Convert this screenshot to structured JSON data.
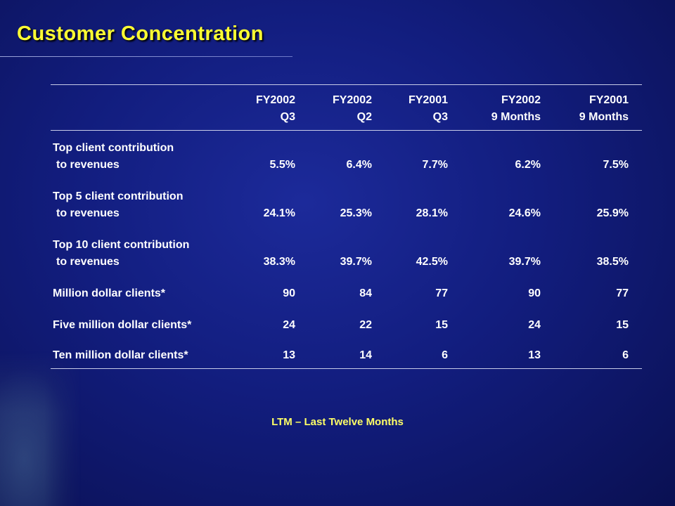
{
  "title": "Customer Concentration",
  "columns": [
    {
      "line1": "FY2002",
      "line2": "Q3"
    },
    {
      "line1": "FY2002",
      "line2": "Q2"
    },
    {
      "line1": "FY2001",
      "line2": "Q3"
    },
    {
      "line1": "FY2002",
      "line2": "9 Months"
    },
    {
      "line1": "FY2001",
      "line2": "9 Months"
    }
  ],
  "rows": [
    {
      "label1": "Top client contribution",
      "label2": "to revenues",
      "values": [
        "5.5%",
        "6.4%",
        "7.7%",
        "6.2%",
        "7.5%"
      ]
    },
    {
      "label1": "Top 5 client contribution",
      "label2": "to revenues",
      "values": [
        "24.1%",
        "25.3%",
        "28.1%",
        "24.6%",
        "25.9%"
      ]
    },
    {
      "label1": "Top 10 client contribution",
      "label2": "to revenues",
      "values": [
        "38.3%",
        "39.7%",
        "42.5%",
        "39.7%",
        "38.5%"
      ]
    },
    {
      "label1": "Million dollar clients*",
      "label2": "",
      "values": [
        "90",
        "84",
        "77",
        "90",
        "77"
      ]
    },
    {
      "label1": "Five million dollar clients*",
      "label2": "",
      "values": [
        "24",
        "22",
        "15",
        "24",
        "15"
      ]
    },
    {
      "label1": "Ten million dollar clients*",
      "label2": "",
      "values": [
        "13",
        "14",
        "6",
        "13",
        "6"
      ]
    }
  ],
  "footnote": "LTM – Last Twelve Months",
  "colors": {
    "title": "#ffff33",
    "footnote": "#ffff66",
    "background": "#121d7e"
  }
}
